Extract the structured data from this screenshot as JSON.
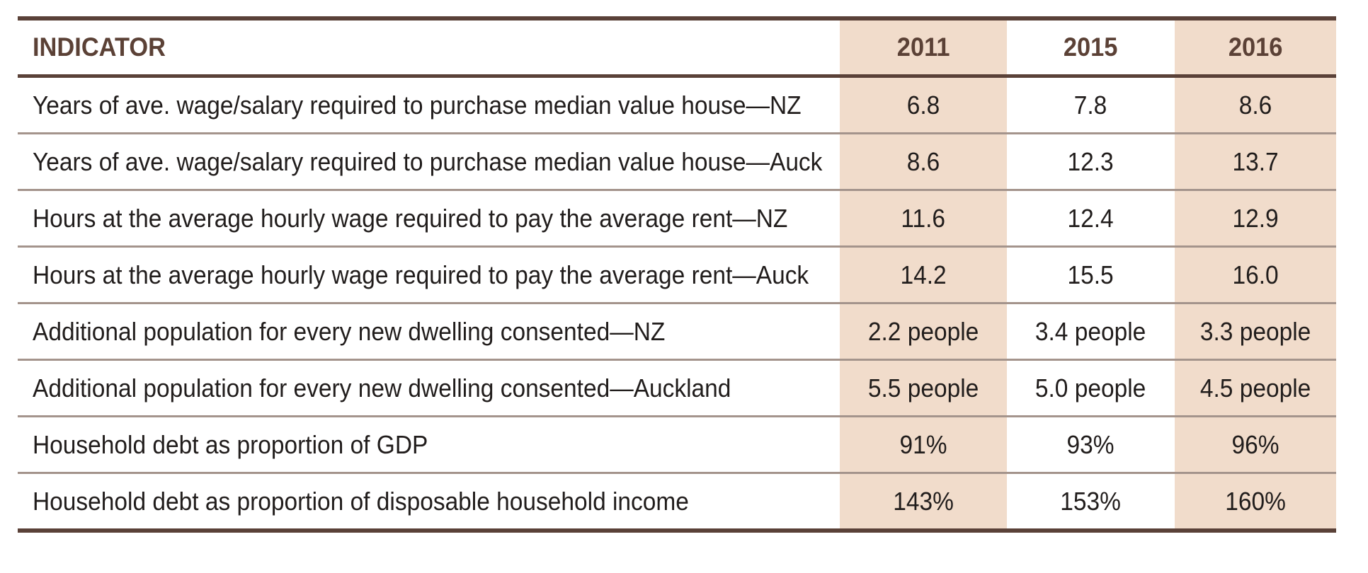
{
  "table": {
    "header": {
      "indicator": "INDICATOR",
      "years": [
        "2011",
        "2015",
        "2016"
      ]
    },
    "rows": [
      {
        "label": "Years of ave. wage/salary required to purchase median value house—NZ",
        "values": [
          "6.8",
          "7.8",
          "8.6"
        ]
      },
      {
        "label": "Years of ave. wage/salary required to purchase median value house—Auck",
        "values": [
          "8.6",
          "12.3",
          "13.7"
        ]
      },
      {
        "label": "Hours at the average hourly wage required to pay the average rent—NZ",
        "values": [
          "11.6",
          "12.4",
          "12.9"
        ]
      },
      {
        "label": "Hours at the average hourly wage required to pay the average rent—Auck",
        "values": [
          "14.2",
          "15.5",
          "16.0"
        ]
      },
      {
        "label": "Additional population for every new dwelling consented—NZ",
        "values": [
          "2.2 people",
          "3.4 people",
          "3.3 people"
        ]
      },
      {
        "label": "Additional population for every new dwelling consented—Auckland",
        "values": [
          "5.5 people",
          "5.0 people",
          "4.5 people"
        ]
      },
      {
        "label": "Household debt as proportion of GDP",
        "values": [
          "91%",
          "93%",
          "96%"
        ]
      },
      {
        "label": "Household debt as proportion of disposable household income",
        "values": [
          "143%",
          "153%",
          "160%"
        ]
      }
    ],
    "colors": {
      "rule_dark": "#5a4138",
      "rule_light": "#a4948c",
      "column_shade": "#f1dccb",
      "header_text": "#5b4136",
      "body_text": "#211d1c"
    }
  },
  "chart_data": {
    "type": "table",
    "title": "",
    "columns": [
      "INDICATOR",
      "2011",
      "2015",
      "2016"
    ],
    "shaded_columns": [
      "2011",
      "2016"
    ],
    "rows": [
      [
        "Years of ave. wage/salary required to purchase median value house—NZ",
        "6.8",
        "7.8",
        "8.6"
      ],
      [
        "Years of ave. wage/salary required to purchase median value house—Auck",
        "8.6",
        "12.3",
        "13.7"
      ],
      [
        "Hours at the average hourly wage required to pay the average rent—NZ",
        "11.6",
        "12.4",
        "12.9"
      ],
      [
        "Hours at the average hourly wage required to pay the average rent—Auck",
        "14.2",
        "15.5",
        "16.0"
      ],
      [
        "Additional population for every new dwelling consented—NZ",
        "2.2 people",
        "3.4 people",
        "3.3 people"
      ],
      [
        "Additional population for every new dwelling consented—Auckland",
        "5.5 people",
        "5.0 people",
        "4.5 people"
      ],
      [
        "Household debt as proportion of GDP",
        "91%",
        "93%",
        "96%"
      ],
      [
        "Household debt as proportion of disposable household income",
        "143%",
        "153%",
        "160%"
      ]
    ]
  }
}
